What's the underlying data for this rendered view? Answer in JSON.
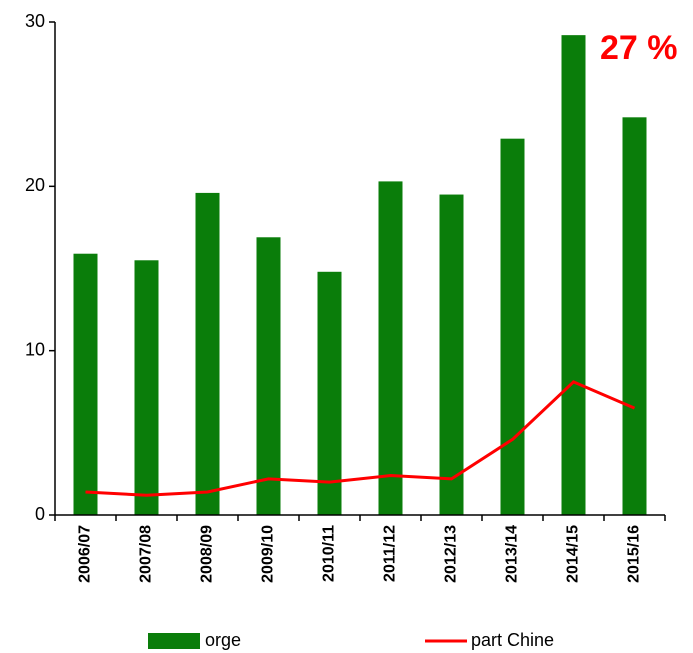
{
  "chart_data": {
    "type": "bar",
    "categories": [
      "2006/07",
      "2007/08",
      "2008/09",
      "2009/10",
      "2010/11",
      "2011/12",
      "2012/13",
      "2013/14",
      "2014/15",
      "2015/16"
    ],
    "series": [
      {
        "name": "orge",
        "type": "bar",
        "color": "#0a7d0a",
        "values": [
          15.9,
          15.5,
          19.6,
          16.9,
          14.8,
          20.3,
          19.5,
          22.9,
          29.2,
          24.2
        ]
      },
      {
        "name": "part Chine",
        "type": "line",
        "color": "#ff0000",
        "values": [
          1.4,
          1.2,
          1.4,
          2.2,
          2.0,
          2.4,
          2.2,
          4.6,
          8.1,
          6.5
        ]
      }
    ],
    "annotation": "27 %",
    "ylim": [
      0,
      30
    ],
    "yticks": [
      0,
      10,
      20,
      30
    ],
    "grid": false,
    "legend": "bottom"
  }
}
